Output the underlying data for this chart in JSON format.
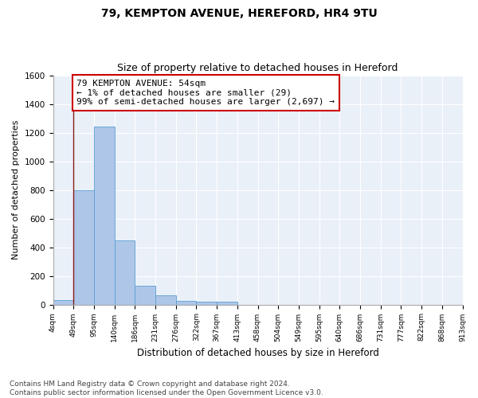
{
  "title1": "79, KEMPTON AVENUE, HEREFORD, HR4 9TU",
  "title2": "Size of property relative to detached houses in Hereford",
  "xlabel": "Distribution of detached houses by size in Hereford",
  "ylabel": "Number of detached properties",
  "bar_values": [
    29,
    800,
    1240,
    450,
    130,
    65,
    28,
    18,
    18,
    0,
    0,
    0,
    0,
    0,
    0,
    0,
    0,
    0,
    0,
    0
  ],
  "bin_labels": [
    "4sqm",
    "49sqm",
    "95sqm",
    "140sqm",
    "186sqm",
    "231sqm",
    "276sqm",
    "322sqm",
    "367sqm",
    "413sqm",
    "458sqm",
    "504sqm",
    "549sqm",
    "595sqm",
    "640sqm",
    "686sqm",
    "731sqm",
    "777sqm",
    "822sqm",
    "868sqm",
    "913sqm"
  ],
  "bar_color": "#aec6e8",
  "bar_edge_color": "#5a9fd4",
  "vline_color": "#8b1a1a",
  "annotation_text": "79 KEMPTON AVENUE: 54sqm\n← 1% of detached houses are smaller (29)\n99% of semi-detached houses are larger (2,697) →",
  "annotation_box_edge": "#cc0000",
  "ylim": [
    0,
    1600
  ],
  "yticks": [
    0,
    200,
    400,
    600,
    800,
    1000,
    1200,
    1400,
    1600
  ],
  "footer": "Contains HM Land Registry data © Crown copyright and database right 2024.\nContains public sector information licensed under the Open Government Licence v3.0.",
  "plot_bg_color": "#eaf0f8",
  "title1_fontsize": 10,
  "title2_fontsize": 9,
  "annotation_fontsize": 8,
  "footer_fontsize": 6.5,
  "ylabel_fontsize": 8,
  "xlabel_fontsize": 8.5,
  "tick_fontsize": 6.5,
  "ytick_fontsize": 7.5
}
